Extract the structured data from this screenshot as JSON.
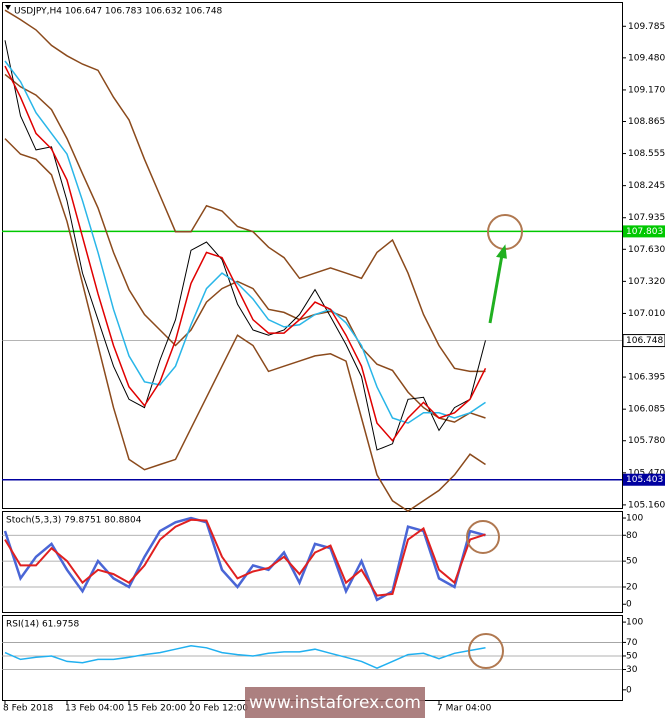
{
  "chart_data": [
    {
      "type": "line",
      "title": "USDJPY,H4 106.647 106.783 106.632 106.748",
      "categories": [
        "8 Feb 2018",
        null,
        null,
        null,
        "13 Feb 04:00",
        null,
        null,
        null,
        "15 Feb 20:00",
        null,
        null,
        null,
        "20 Feb 12:00",
        null,
        null,
        null,
        null,
        null,
        null,
        null,
        null,
        null,
        null,
        null,
        null,
        null,
        null,
        null,
        "7 Mar 04:00",
        null,
        null,
        null
      ],
      "series": [
        {
          "name": "Upper Band",
          "color": "#8b4a1c",
          "values": [
            109.94,
            109.85,
            109.75,
            109.6,
            109.5,
            109.42,
            109.36,
            109.1,
            108.88,
            108.5,
            108.15,
            107.8,
            107.8,
            108.05,
            108.0,
            107.85,
            107.8,
            107.65,
            107.55,
            107.35,
            107.4,
            107.45,
            107.4,
            107.35,
            107.6,
            107.72,
            107.4,
            107.0,
            106.7,
            106.48,
            106.45,
            106.45
          ]
        },
        {
          "name": "Middle Band",
          "color": "#8b4a1c",
          "values": [
            109.32,
            109.2,
            109.12,
            108.98,
            108.7,
            108.36,
            108.03,
            107.6,
            107.24,
            107.0,
            106.85,
            106.7,
            106.85,
            107.12,
            107.25,
            107.32,
            107.25,
            107.05,
            107.02,
            106.95,
            107.0,
            107.03,
            106.97,
            106.68,
            106.52,
            106.46,
            106.25,
            106.1,
            106.0,
            105.96,
            106.05,
            106.0
          ]
        },
        {
          "name": "Lower Band",
          "color": "#8b4a1c",
          "values": [
            108.7,
            108.55,
            108.5,
            108.35,
            107.9,
            107.3,
            106.7,
            106.1,
            105.6,
            105.5,
            105.55,
            105.6,
            105.9,
            106.2,
            106.5,
            106.8,
            106.7,
            106.45,
            106.5,
            106.55,
            106.6,
            106.62,
            106.55,
            106.0,
            105.45,
            105.2,
            105.1,
            105.2,
            105.3,
            105.45,
            105.65,
            105.55
          ]
        },
        {
          "name": "Price",
          "color": "#000000",
          "values": [
            109.65,
            108.92,
            108.59,
            108.62,
            108.1,
            107.4,
            106.95,
            106.5,
            106.18,
            106.1,
            106.56,
            106.95,
            107.62,
            107.7,
            107.53,
            107.1,
            106.85,
            106.8,
            106.85,
            107.0,
            107.24,
            106.98,
            106.71,
            106.4,
            105.69,
            105.75,
            106.18,
            106.2,
            105.88,
            106.1,
            106.18,
            106.75
          ]
        },
        {
          "name": "Slow MA",
          "color": "#29b6e8",
          "values": [
            109.45,
            109.25,
            108.95,
            108.75,
            108.55,
            108.1,
            107.6,
            107.05,
            106.6,
            106.35,
            106.32,
            106.5,
            106.9,
            107.25,
            107.4,
            107.3,
            107.15,
            106.95,
            106.88,
            106.9,
            107.0,
            107.05,
            106.92,
            106.7,
            106.3,
            106.0,
            105.95,
            106.05,
            106.05,
            106.0,
            106.05,
            106.15
          ]
        },
        {
          "name": "Fast MA",
          "color": "#e00000",
          "values": [
            109.4,
            109.1,
            108.75,
            108.6,
            108.3,
            107.75,
            107.2,
            106.7,
            106.3,
            106.12,
            106.35,
            106.75,
            107.3,
            107.6,
            107.55,
            107.25,
            106.95,
            106.82,
            106.82,
            106.95,
            107.12,
            107.05,
            106.8,
            106.5,
            105.95,
            105.78,
            106.0,
            106.15,
            106.0,
            106.05,
            106.18,
            106.48
          ]
        }
      ],
      "levels": [
        {
          "value": 107.803,
          "color": "#00c800"
        },
        {
          "value": 105.403,
          "color": "#0000a0"
        }
      ],
      "last_price": 106.748,
      "ylim": [
        105.13,
        110.01
      ],
      "yticks": [
        109.785,
        {
          "value": 109.48,
          "label": "109.480"
        },
        {
          "value": 109.17,
          "label": "109.170"
        },
        108.865,
        108.555,
        108.245,
        107.935,
        {
          "value": 107.63,
          "label": "107.630"
        },
        {
          "value": 107.32,
          "label": "107.320"
        },
        {
          "value": 107.01,
          "label": "107.010"
        },
        106.395,
        106.085,
        {
          "value": 105.78,
          "label": "105.780"
        },
        {
          "value": 105.47,
          "label": "105.470"
        },
        {
          "value": 105.16,
          "label": "105.160"
        }
      ],
      "grid": false
    },
    {
      "type": "line",
      "title": "Stoch(5,3,3) 79.8751 80.8804",
      "series": [
        {
          "name": "Main",
          "color": "#4a66d6",
          "values": [
            85,
            30,
            55,
            70,
            40,
            15,
            50,
            30,
            20,
            55,
            85,
            95,
            100,
            95,
            40,
            20,
            45,
            40,
            60,
            25,
            70,
            65,
            15,
            50,
            5,
            15,
            90,
            85,
            30,
            20,
            85,
            80
          ]
        },
        {
          "name": "Signal",
          "color": "#e02020",
          "values": [
            75,
            45,
            45,
            65,
            50,
            25,
            40,
            35,
            25,
            45,
            75,
            90,
            98,
            97,
            55,
            30,
            38,
            42,
            55,
            35,
            60,
            68,
            25,
            40,
            10,
            12,
            75,
            88,
            40,
            25,
            75,
            81
          ]
        }
      ],
      "ylim": [
        -9,
        107
      ],
      "yticks": [
        100,
        80,
        50,
        20,
        0
      ],
      "grid": true
    },
    {
      "type": "line",
      "title": "RSI(14) 61.9758",
      "series": [
        {
          "name": "RSI",
          "color": "#20b0f0",
          "values": [
            55,
            45,
            48,
            50,
            42,
            40,
            45,
            45,
            48,
            52,
            55,
            60,
            65,
            62,
            55,
            52,
            50,
            54,
            56,
            56,
            60,
            54,
            48,
            42,
            32,
            42,
            52,
            54,
            46,
            54,
            58,
            62
          ]
        }
      ],
      "ylim": [
        -15,
        109
      ],
      "yticks": [
        100,
        70,
        50,
        30,
        0
      ],
      "grid": true
    }
  ],
  "watermark": "www.instaforex.com"
}
